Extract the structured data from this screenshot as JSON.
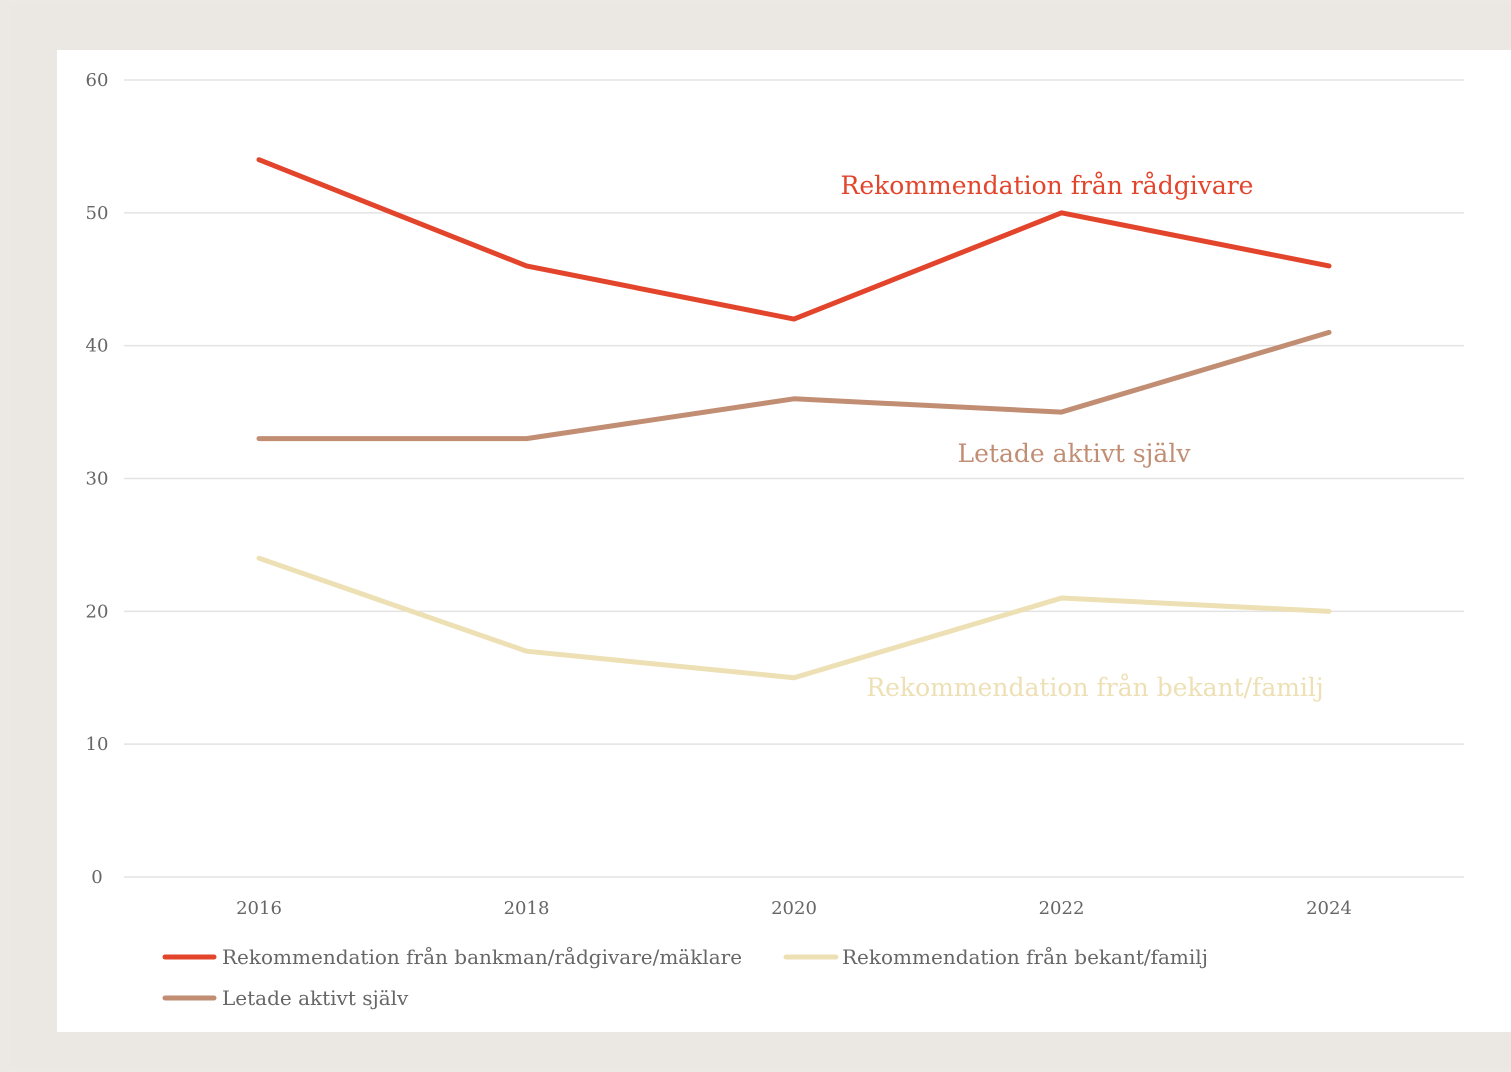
{
  "chart_data": {
    "type": "line",
    "title": "",
    "xlabel": "",
    "ylabel": "",
    "categories": [
      "2016",
      "2018",
      "2020",
      "2022",
      "2024"
    ],
    "ylim": [
      0,
      60
    ],
    "yticks": [
      0,
      10,
      20,
      30,
      40,
      50,
      60
    ],
    "grid": true,
    "legend_position": "bottom-left",
    "series": [
      {
        "name": "Rekommendation från bankman/rådgivare/mäklare",
        "annotation": "Rekommendation från rådgivare",
        "color": "#e2452b",
        "values": [
          54,
          46,
          42,
          50,
          46
        ]
      },
      {
        "name": "Rekommendation från bekant/familj",
        "annotation": "Rekommendation från bekant/familj",
        "color": "#ede0b4",
        "values": [
          24,
          17,
          15,
          21,
          20
        ]
      },
      {
        "name": "Letade aktivt själv",
        "annotation": "Letade aktivt själv",
        "color": "#c18e74",
        "values": [
          33,
          33,
          36,
          35,
          41
        ]
      }
    ]
  }
}
